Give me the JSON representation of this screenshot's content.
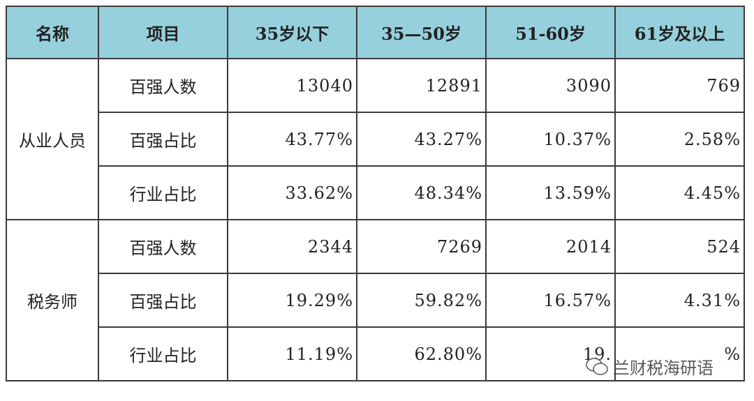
{
  "table": {
    "header": [
      "名称",
      "项目",
      "35岁以下",
      "35—50岁",
      "51-60岁",
      "61岁及以上"
    ],
    "groups": [
      {
        "name": "从业人员",
        "rows": [
          {
            "item": "百强人数",
            "values": [
              "13040",
              "12891",
              "3090",
              "769"
            ]
          },
          {
            "item": "百强占比",
            "values": [
              "43.77%",
              "43.27%",
              "10.37%",
              "2.58%"
            ]
          },
          {
            "item": "行业占比",
            "values": [
              "33.62%",
              "48.34%",
              "13.59%",
              "4.45%"
            ]
          }
        ]
      },
      {
        "name": "税务师",
        "rows": [
          {
            "item": "百强人数",
            "values": [
              "2344",
              "7269",
              "2014",
              "524"
            ]
          },
          {
            "item": "百强占比",
            "values": [
              "19.29%",
              "59.82%",
              "16.57%",
              "4.31%"
            ]
          },
          {
            "item": "行业占比",
            "values": [
              "11.19%",
              "62.80%",
              "19.",
              "%"
            ]
          }
        ]
      }
    ]
  },
  "watermark": "兰财税海研语"
}
